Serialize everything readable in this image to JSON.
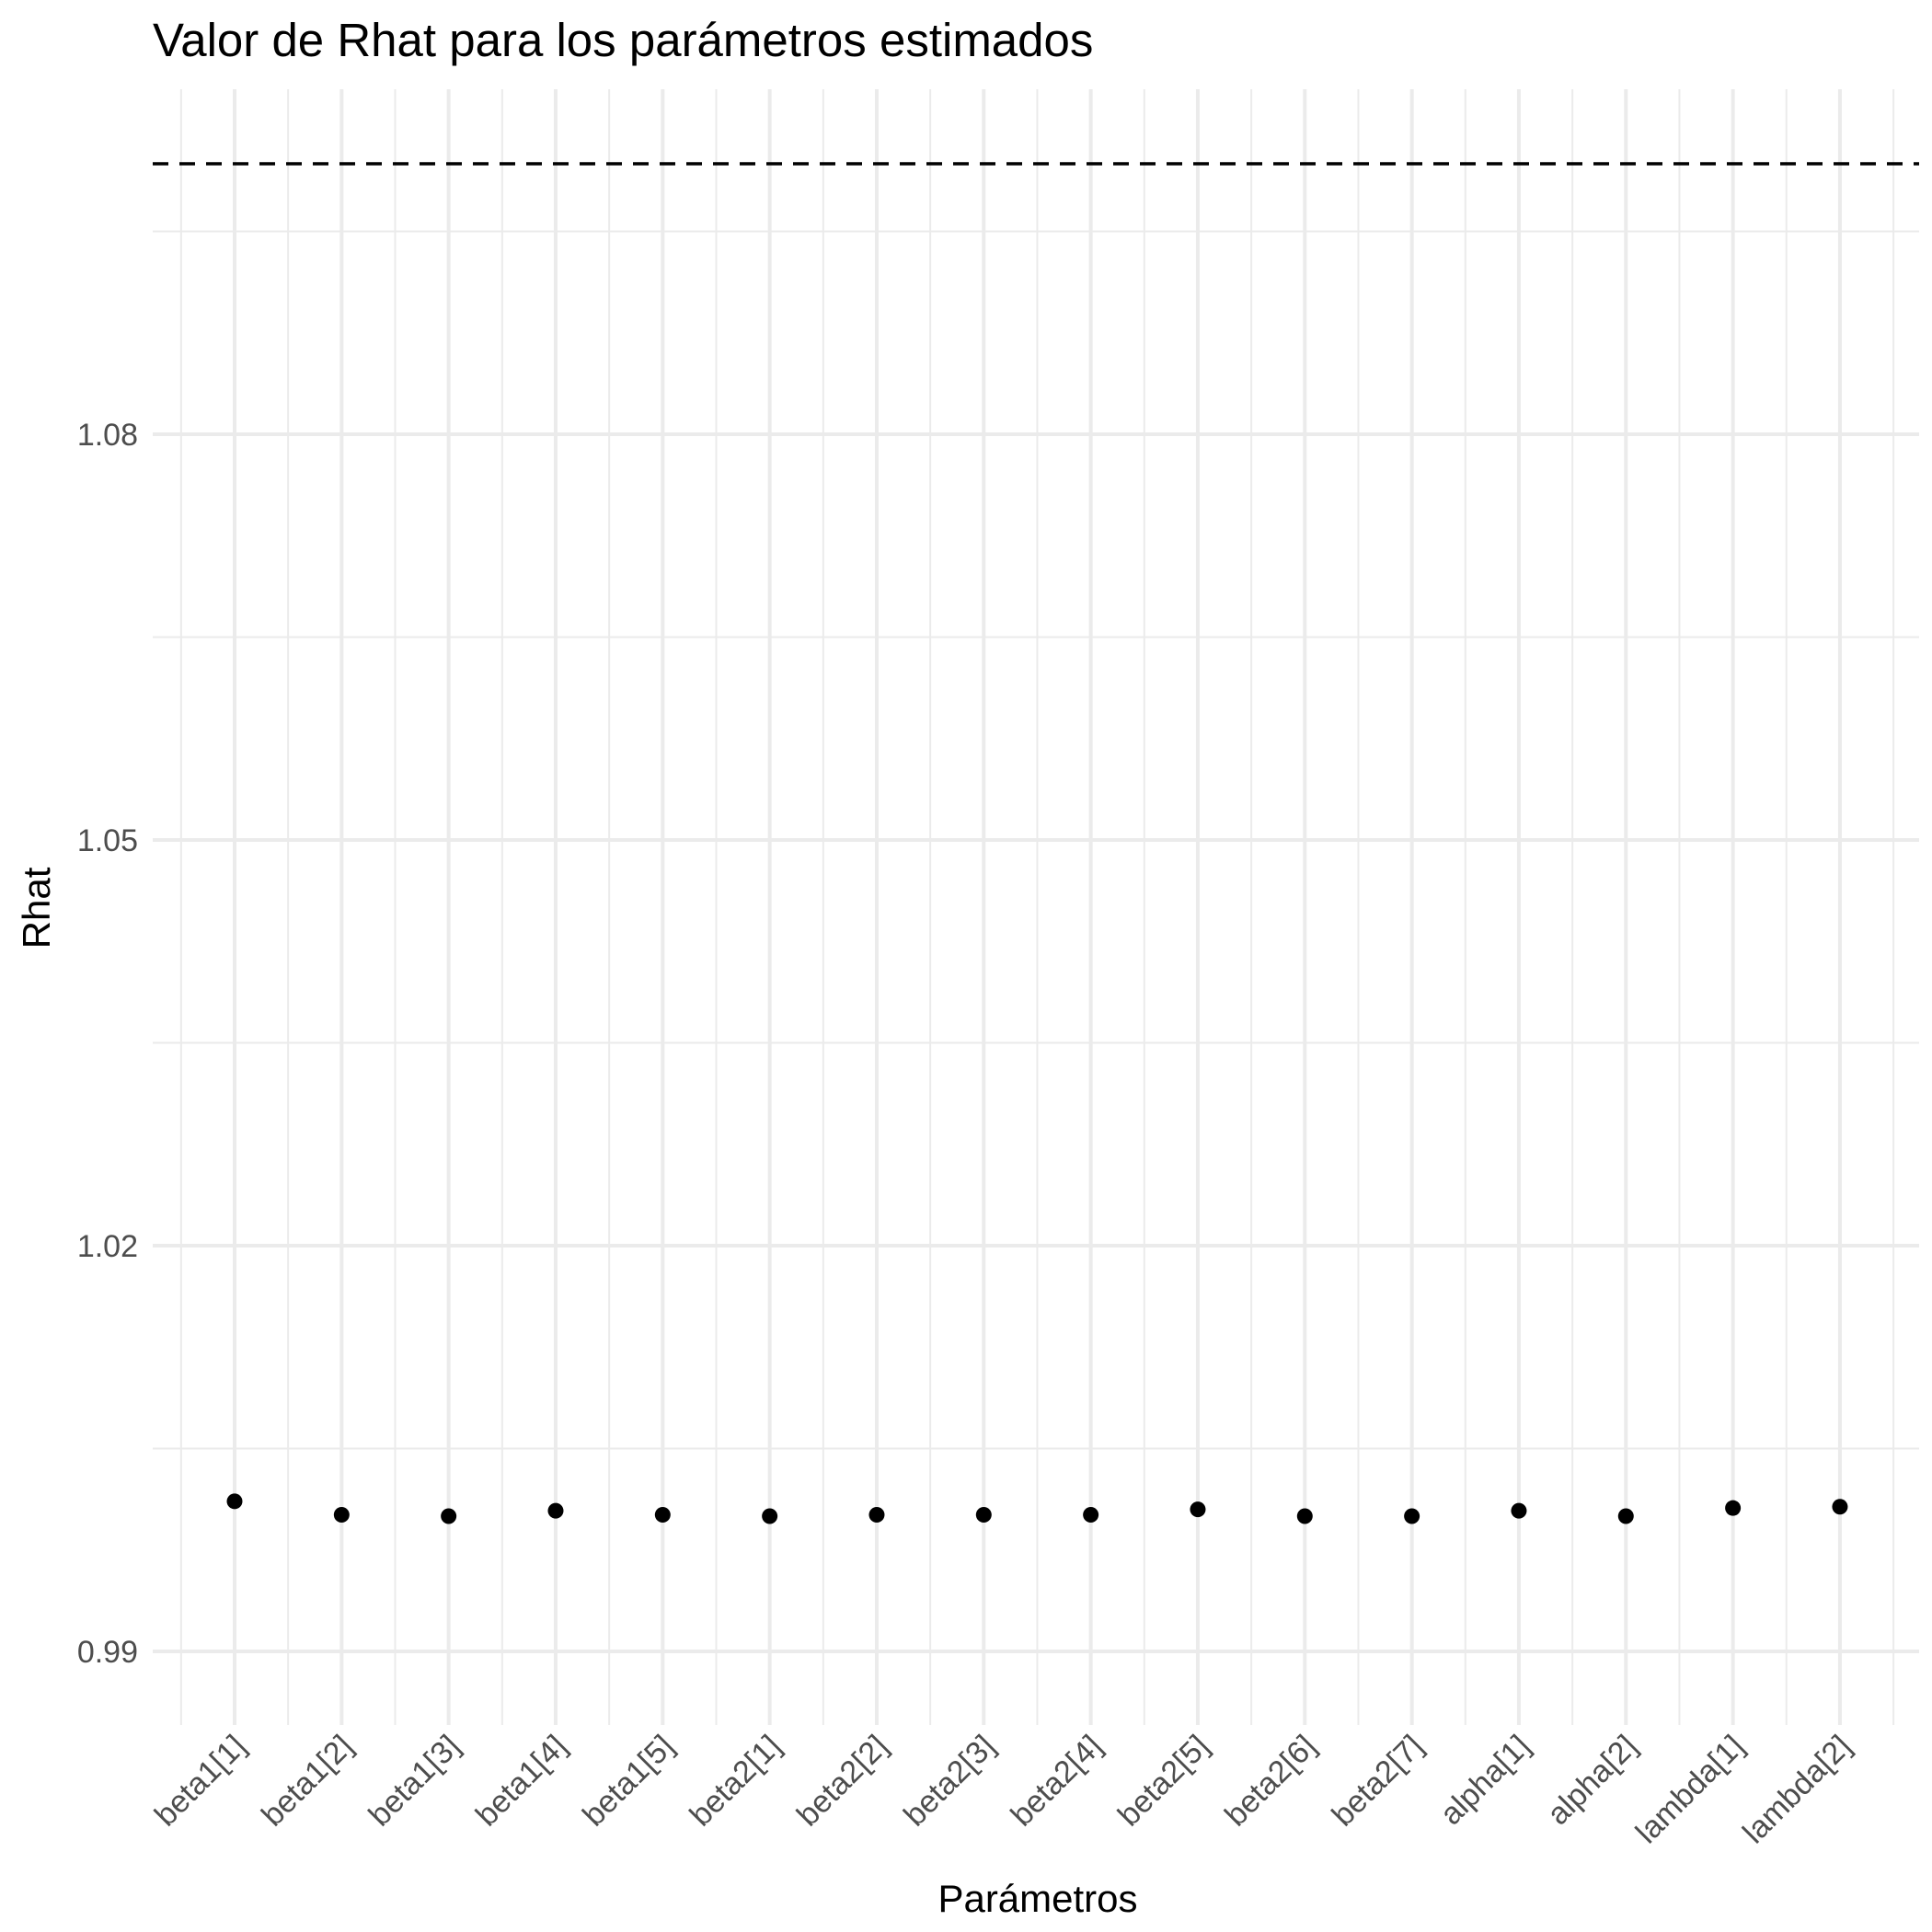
{
  "chart_data": {
    "type": "scatter",
    "title": "Valor de Rhat para los parámetros estimados",
    "xlabel": "Parámetros",
    "ylabel": "Rhat",
    "categories": [
      "beta1[1]",
      "beta1[2]",
      "beta1[3]",
      "beta1[4]",
      "beta1[5]",
      "beta2[1]",
      "beta2[2]",
      "beta2[3]",
      "beta2[4]",
      "beta2[5]",
      "beta2[6]",
      "beta2[7]",
      "alpha[1]",
      "alpha[2]",
      "lambda[1]",
      "lambda[2]"
    ],
    "values": [
      1.0011,
      1.0001,
      1.0,
      1.0004,
      1.0001,
      1.0,
      1.0001,
      1.0001,
      1.0001,
      1.0005,
      1.0,
      1.0,
      1.0004,
      1.0,
      1.0006,
      1.0007
    ],
    "reference_line": {
      "y": 1.1,
      "style": "dashed"
    },
    "yticks": [
      0.99,
      1.02,
      1.05,
      1.08
    ],
    "ylim": [
      0.985,
      1.1
    ],
    "grid": true,
    "colors": {
      "points": "#000000",
      "grid": "#ebebeb",
      "reference": "#000000"
    }
  }
}
